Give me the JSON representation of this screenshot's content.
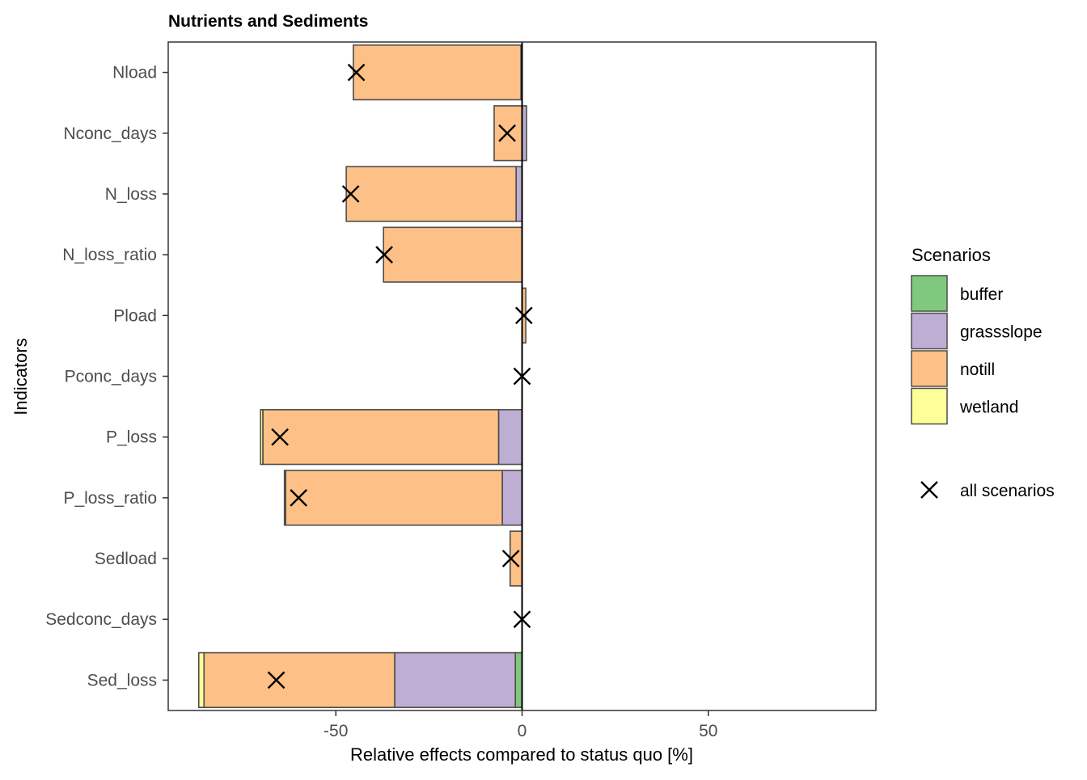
{
  "chart_data": {
    "type": "bar",
    "stacked": true,
    "orientation": "horizontal",
    "title": "Nutrients and Sediments",
    "xlabel": "Relative effects compared to status quo [%]",
    "ylabel": "Indicators",
    "xlim": [
      -95,
      95
    ],
    "xticks": [
      -50,
      0,
      50
    ],
    "xtick_labels": [
      "-50",
      "0",
      "50"
    ],
    "grid": false,
    "legend_position": "right",
    "legend_title": "Scenarios",
    "categories": [
      "Nload",
      "Nconc_days",
      "N_loss",
      "N_loss_ratio",
      "Pload",
      "Pconc_days",
      "P_loss",
      "P_loss_ratio",
      "Sedload",
      "Sedconc_days",
      "Sed_loss"
    ],
    "series": [
      {
        "name": "buffer",
        "color": "#7fc97f",
        "values": [
          0,
          0,
          0,
          0,
          0,
          0,
          0,
          0,
          0,
          0,
          -1.8
        ]
      },
      {
        "name": "grassslope",
        "color": "#beaed4",
        "values": [
          -0.3,
          1.2,
          -1.6,
          0,
          0,
          0,
          -6.3,
          -5.3,
          0,
          0,
          -32.4
        ]
      },
      {
        "name": "notill",
        "color": "#fdc086",
        "values": [
          -45,
          -7.5,
          -45.6,
          -37.2,
          1.0,
          0,
          -63.3,
          -58.2,
          -3.2,
          0,
          -51.2
        ]
      },
      {
        "name": "wetland",
        "color": "#ffff99",
        "values": [
          0,
          0,
          0,
          0,
          0,
          0,
          -0.6,
          -0.3,
          0,
          0,
          -1.4
        ]
      }
    ],
    "markers": {
      "name": "all scenarios",
      "symbol": "x",
      "values": [
        -44.5,
        -4,
        -46,
        -37,
        0.5,
        0,
        -65,
        -60,
        -3,
        0,
        -66
      ]
    },
    "reference_line": 0
  },
  "colors": {
    "buffer": "#7fc97f",
    "grassslope": "#beaed4",
    "notill": "#fdc086",
    "wetland": "#ffff99"
  }
}
